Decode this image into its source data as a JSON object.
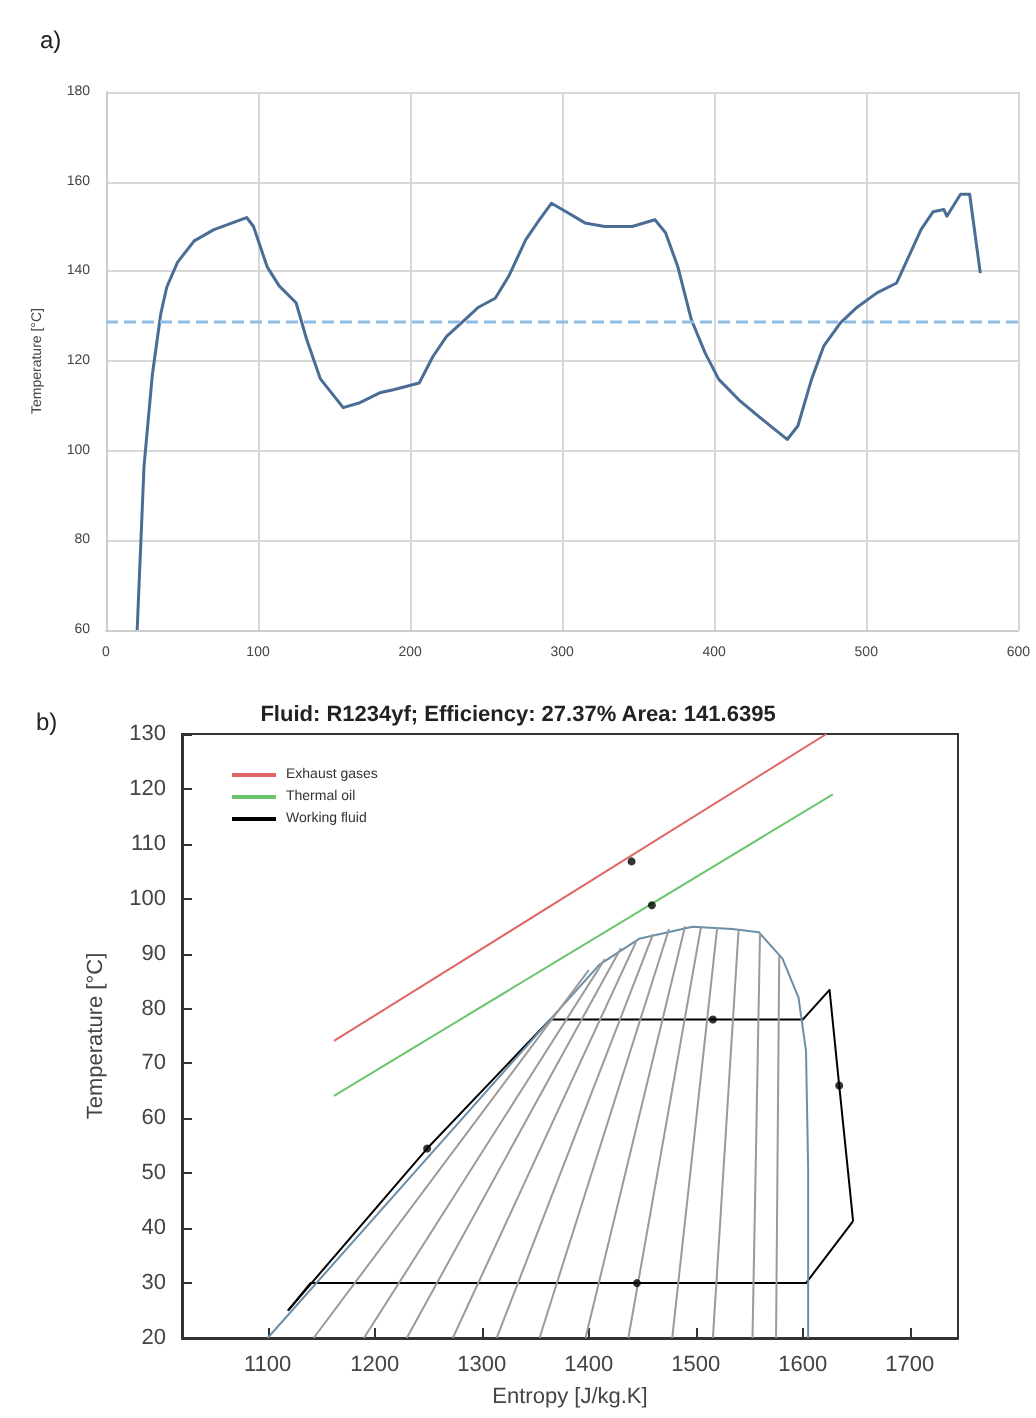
{
  "chart_data": [
    {
      "type": "line",
      "annotations": [
        "a)"
      ],
      "ylabel": "Temperature [°C]",
      "xlim": [
        0,
        600
      ],
      "xticks": [
        0,
        100,
        200,
        300,
        400,
        500,
        600
      ],
      "ylim": [
        60,
        180
      ],
      "yticks": [
        60,
        80,
        100,
        120,
        140,
        160,
        180
      ],
      "grid": true,
      "ref_lines": [
        {
          "axis": "y",
          "value": 129,
          "color": "#8fbde6",
          "line_style": "dashed"
        }
      ],
      "series": [
        {
          "color": "#4a6d96",
          "x": [
            20.5,
            25,
            30.5,
            36,
            40,
            47,
            58,
            71,
            92.5,
            97,
            106,
            114,
            125,
            132,
            141,
            156,
            167,
            180,
            189,
            206,
            215,
            224,
            237,
            245,
            256,
            265,
            276,
            285,
            293,
            304,
            315,
            328,
            346,
            361,
            368,
            376,
            385,
            394,
            403,
            416,
            429,
            440,
            448,
            455,
            464,
            472,
            483,
            494,
            507,
            520,
            527,
            536,
            544,
            551,
            553,
            562,
            568,
            575
          ],
          "values": [
            60,
            96.5,
            117,
            130.5,
            136.5,
            142,
            146.8,
            149.3,
            152,
            150,
            141,
            136.7,
            133,
            124.8,
            116,
            109.6,
            110.7,
            112.9,
            113.6,
            115.1,
            121,
            125.5,
            129.5,
            132,
            134,
            139,
            147,
            151.5,
            155.2,
            153,
            150.8,
            150,
            150,
            151.5,
            148.6,
            141.1,
            129.2,
            121.8,
            115.9,
            111.4,
            107.7,
            104.7,
            102.5,
            105.5,
            115.9,
            123.3,
            128.5,
            132,
            135.2,
            137.4,
            142.6,
            149.3,
            153.3,
            153.8,
            152.3,
            157.2,
            157.2,
            139.6
          ]
        }
      ]
    },
    {
      "type": "line",
      "title": "Fluid: R1234yf; Efficiency: 27.37% Area: 141.6395",
      "annotations": [
        "b)"
      ],
      "xlabel": "Entropy [J/kg.K]",
      "ylabel": "Temperature [°C]",
      "xlim": [
        1020,
        1745
      ],
      "xticks": [
        1100,
        1200,
        1300,
        1400,
        1500,
        1600,
        1700
      ],
      "ylim": [
        20,
        130
      ],
      "yticks": [
        20,
        30,
        40,
        50,
        60,
        70,
        80,
        90,
        100,
        110,
        120,
        130
      ],
      "grid": false,
      "legend": "top left",
      "series": [
        {
          "name": "Exhaust gases",
          "color": "#e06666",
          "x": [
            1162,
            1622
          ],
          "values": [
            74.1,
            130
          ]
        },
        {
          "name": "Thermal oil",
          "color": "#6cc46c",
          "x": [
            1162,
            1628
          ],
          "values": [
            64.1,
            119
          ]
        },
        {
          "name": "Working fluid",
          "color": "#000000",
          "x": [
            1119,
            1249,
            1364,
            1516,
            1600,
            1625,
            1634,
            1647
          ],
          "values": [
            25,
            54.5,
            78,
            78,
            78,
            83.4,
            66,
            41.3
          ]
        },
        {
          "color": "#000000",
          "x": [
            1119,
            1140,
            1445,
            1603,
            1647
          ],
          "values": [
            25,
            30,
            30,
            30,
            41.3
          ]
        },
        {
          "color": "#6b8fa8",
          "x": [
            1100,
            1364,
            1410,
            1447,
            1497,
            1534,
            1559,
            1581,
            1596,
            1603,
            1605,
            1605
          ],
          "values": [
            20,
            78,
            88,
            92.7,
            94.9,
            94.5,
            93.9,
            89.1,
            82,
            72.3,
            50.7,
            20
          ]
        },
        {
          "color": "#9a9a9a",
          "x": [
            1143,
            1400
          ],
          "values": [
            20,
            87
          ]
        },
        {
          "color": "#9a9a9a",
          "x": [
            1190,
            1415
          ],
          "values": [
            20,
            89
          ]
        },
        {
          "color": "#9a9a9a",
          "x": [
            1230,
            1430
          ],
          "values": [
            20,
            91
          ]
        },
        {
          "color": "#9a9a9a",
          "x": [
            1273,
            1445
          ],
          "values": [
            20,
            92.5
          ]
        },
        {
          "color": "#9a9a9a",
          "x": [
            1314,
            1460
          ],
          "values": [
            20,
            93.5
          ]
        },
        {
          "color": "#9a9a9a",
          "x": [
            1354,
            1475
          ],
          "values": [
            20,
            94.5
          ]
        },
        {
          "color": "#9a9a9a",
          "x": [
            1397,
            1490
          ],
          "values": [
            20,
            95
          ]
        },
        {
          "color": "#9a9a9a",
          "x": [
            1437,
            1505
          ],
          "values": [
            20,
            95
          ]
        },
        {
          "color": "#9a9a9a",
          "x": [
            1478,
            1520
          ],
          "values": [
            20,
            94.7
          ]
        },
        {
          "color": "#9a9a9a",
          "x": [
            1516,
            1540
          ],
          "values": [
            20,
            94.3
          ]
        },
        {
          "color": "#9a9a9a",
          "x": [
            1553,
            1560
          ],
          "values": [
            20,
            93.5
          ]
        },
        {
          "color": "#9a9a9a",
          "x": [
            1575,
            1578
          ],
          "values": [
            20,
            90
          ]
        },
        {
          "type": "scatter",
          "marker": "circle",
          "color": "#000000",
          "x": [
            1440,
            1459,
            1249,
            1516,
            1634,
            1445
          ],
          "values": [
            106.8,
            98.8,
            54.5,
            78,
            66,
            30
          ]
        }
      ]
    }
  ]
}
